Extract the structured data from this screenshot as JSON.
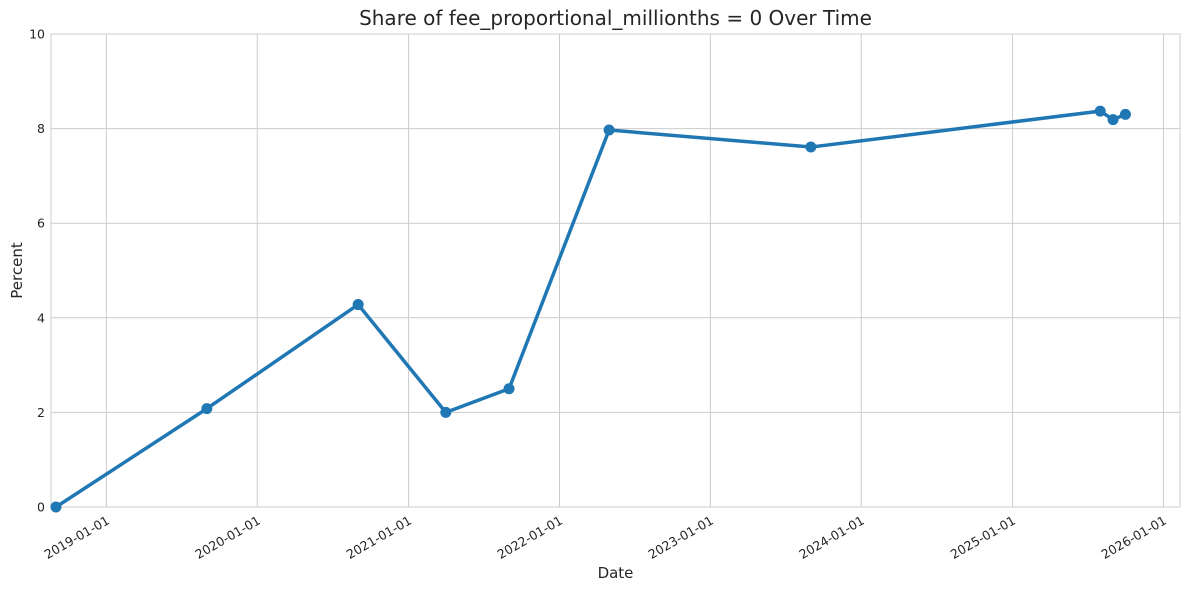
{
  "chart_data": {
    "type": "line",
    "title": "Share of fee_proportional_millionths = 0 Over Time",
    "xlabel": "Date",
    "ylabel": "Percent",
    "ylim": [
      0,
      10
    ],
    "xlim": [
      "2018-08-20",
      "2026-02-10"
    ],
    "grid": true,
    "legend": "none",
    "y_ticks": [
      0,
      2,
      4,
      6,
      8,
      10
    ],
    "x_ticks": [
      "2019-01-01",
      "2020-01-01",
      "2021-01-01",
      "2022-01-01",
      "2023-01-01",
      "2024-01-01",
      "2025-01-01",
      "2026-01-01"
    ],
    "series": [
      {
        "color": "#1f77b4",
        "x": [
          "2018-09-01",
          "2019-09-01",
          "2020-09-01",
          "2021-04-01",
          "2021-09-01",
          "2022-05-01",
          "2023-09-01",
          "2025-08-01",
          "2025-09-01",
          "2025-10-01"
        ],
        "y": [
          0.0,
          2.08,
          4.28,
          2.0,
          2.5,
          7.97,
          7.61,
          8.37,
          8.19,
          8.3
        ]
      }
    ]
  }
}
